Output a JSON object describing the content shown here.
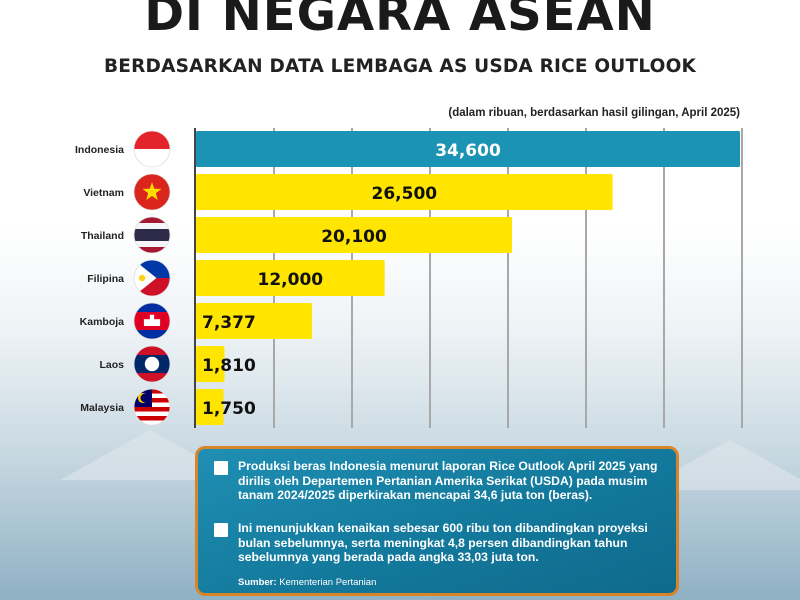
{
  "header": {
    "title": "DI NEGARA ASEAN",
    "subtitle": "BERDASARKAN DATA LEMBAGA AS USDA RICE OUTLOOK",
    "note": "(dalam ribuan, berdasarkan hasil gilingan, April 2025)"
  },
  "chart_data": {
    "type": "bar",
    "orientation": "horizontal",
    "categories": [
      "Indonesia",
      "Vietnam",
      "Thailand",
      "Filipina",
      "Kamboja",
      "Laos",
      "Malaysia"
    ],
    "values": [
      34600,
      26500,
      20100,
      12000,
      7377,
      1810,
      1750
    ],
    "value_labels": [
      "34,600",
      "26,500",
      "20,100",
      "12,000",
      "7,377",
      "1,810",
      "1,750"
    ],
    "xlim": [
      0,
      34600
    ],
    "grid": true,
    "highlight_category": "Indonesia",
    "colors": {
      "highlight": "#1a93b5",
      "default": "#ffe500",
      "grid": "#a8a8a8"
    },
    "flag_icons": [
      "indonesia-flag-icon",
      "vietnam-flag-icon",
      "thailand-flag-icon",
      "philippines-flag-icon",
      "cambodia-flag-icon",
      "laos-flag-icon",
      "malaysia-flag-icon"
    ]
  },
  "info": {
    "bullets": [
      "Produksi beras Indonesia menurut laporan Rice Outlook April 2025 yang dirilis oleh Departemen Pertanian Amerika Serikat (USDA) pada musim tanam 2024/2025 diperkirakan mencapai 34,6 juta ton (beras).",
      "Ini menunjukkan kenaikan sebesar 600 ribu ton dibandingkan proyeksi bulan sebelumnya, serta meningkat 4,8 persen dibandingkan tahun sebelumnya yang berada pada angka 33,03 juta ton."
    ],
    "source_label": "Sumber:",
    "source_value": "Kementerian Pertanian"
  }
}
